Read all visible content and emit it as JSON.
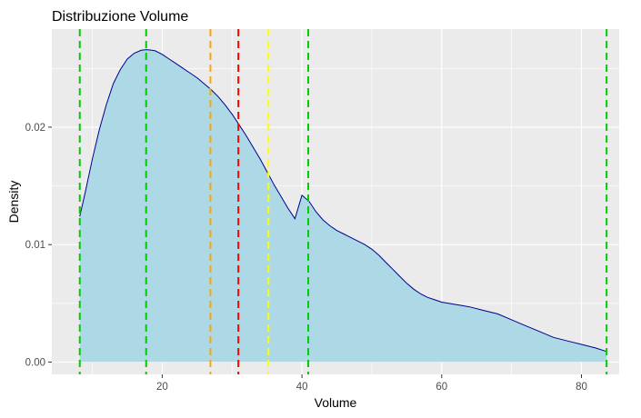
{
  "chart_data": {
    "type": "area",
    "title": "Distribuzione Volume",
    "xlabel": "Volume",
    "ylabel": "Density",
    "xlim": [
      4.2,
      85.4
    ],
    "ylim": [
      -0.00105,
      0.02835
    ],
    "x_ticks": [
      20,
      40,
      60,
      80
    ],
    "x_minor_ticks": [
      10,
      30,
      50,
      70
    ],
    "y_ticks": [
      0.0,
      0.01,
      0.02
    ],
    "x_tick_labels": [
      "20",
      "40",
      "60",
      "80"
    ],
    "y_tick_labels": [
      "0.00",
      "0.01",
      "0.02"
    ],
    "grid": true,
    "legend": "none",
    "colors": {
      "panel_background": "#ebebeb",
      "grid": "#ffffff",
      "fill": "#add8e6",
      "line": "#00008b",
      "tick": "#333333"
    },
    "density": {
      "x": [
        8.2,
        9,
        10,
        11,
        12,
        13,
        14,
        15,
        16,
        17,
        17.8,
        18.5,
        19,
        20,
        21,
        22,
        23,
        24,
        25,
        26,
        27,
        28,
        29,
        30,
        31,
        32,
        33,
        34,
        35,
        36,
        37,
        38,
        39,
        40,
        41,
        42,
        43,
        44,
        45,
        46,
        47,
        48,
        49,
        50,
        51,
        52,
        53,
        54,
        55,
        56,
        57,
        58,
        59,
        60,
        62,
        64,
        66,
        68,
        70,
        72,
        74,
        76,
        78,
        80,
        82,
        83.6
      ],
      "y": [
        0.0124,
        0.0145,
        0.0173,
        0.0198,
        0.0219,
        0.0237,
        0.0249,
        0.0258,
        0.0263,
        0.02655,
        0.0266,
        0.02655,
        0.0265,
        0.0262,
        0.0258,
        0.0254,
        0.025,
        0.0246,
        0.0242,
        0.0237,
        0.0232,
        0.0226,
        0.0219,
        0.0211,
        0.0202,
        0.0193,
        0.0183,
        0.0173,
        0.0162,
        0.0151,
        0.0141,
        0.0131,
        0.0122,
        0.0142,
        0.0137,
        0.0128,
        0.0121,
        0.0116,
        0.0112,
        0.0109,
        0.0106,
        0.0103,
        0.01,
        0.0096,
        0.0091,
        0.0085,
        0.0079,
        0.0073,
        0.0067,
        0.0062,
        0.0058,
        0.0055,
        0.0053,
        0.0051,
        0.0049,
        0.0047,
        0.0044,
        0.0041,
        0.0036,
        0.0031,
        0.0026,
        0.0021,
        0.0018,
        0.0015,
        0.0012,
        0.0009
      ]
    },
    "vlines": [
      {
        "x": 8.2,
        "color": "#00cd00"
      },
      {
        "x": 17.7,
        "color": "#00cd00"
      },
      {
        "x": 40.9,
        "color": "#00cd00"
      },
      {
        "x": 83.6,
        "color": "#00cd00"
      },
      {
        "x": 26.9,
        "color": "#ffa500"
      },
      {
        "x": 30.9,
        "color": "#ff0000"
      },
      {
        "x": 35.2,
        "color": "#ffff00"
      }
    ]
  }
}
